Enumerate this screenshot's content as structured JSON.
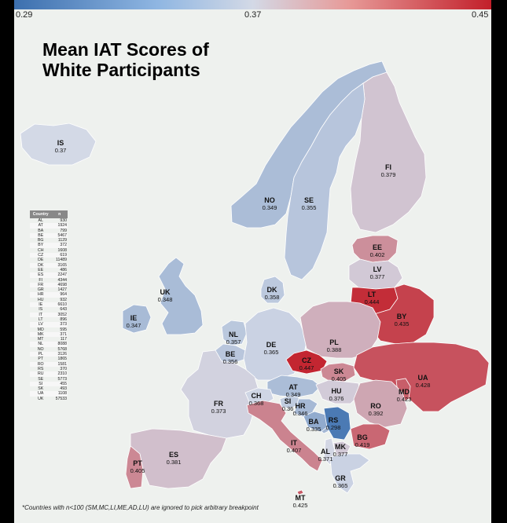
{
  "title_line1": "Mean IAT Scores of",
  "title_line2": "White Participants",
  "colorbar": {
    "min_label": "0.29",
    "mid_label": "0.37",
    "max_label": "0.45",
    "min": 0.29,
    "max": 0.45
  },
  "colors": {
    "low": "#3c6fae",
    "mid": "#d3d9e6",
    "high": "#c21f2a",
    "background": "#eef1ee"
  },
  "table": {
    "headers": [
      "Country",
      "n"
    ],
    "rows": [
      [
        "AL",
        "930"
      ],
      [
        "AT",
        "1924"
      ],
      [
        "BA",
        "799"
      ],
      [
        "BE",
        "5467"
      ],
      [
        "BG",
        "1129"
      ],
      [
        "BY",
        "372"
      ],
      [
        "CH",
        "1608"
      ],
      [
        "CZ",
        "619"
      ],
      [
        "DE",
        "11489"
      ],
      [
        "DK",
        "3165"
      ],
      [
        "EE",
        "486"
      ],
      [
        "ES",
        "2247"
      ],
      [
        "FI",
        "4344"
      ],
      [
        "FR",
        "4698"
      ],
      [
        "GR",
        "1427"
      ],
      [
        "HR",
        "964"
      ],
      [
        "HU",
        "932"
      ],
      [
        "IE",
        "6610"
      ],
      [
        "IS",
        "643"
      ],
      [
        "IT",
        "3052"
      ],
      [
        "LT",
        "896"
      ],
      [
        "LV",
        "373"
      ],
      [
        "MD",
        "595"
      ],
      [
        "MK",
        "371"
      ],
      [
        "MT",
        "117"
      ],
      [
        "NL",
        "8088"
      ],
      [
        "NO",
        "5768"
      ],
      [
        "PL",
        "3126"
      ],
      [
        "PT",
        "1865"
      ],
      [
        "RO",
        "1581"
      ],
      [
        "RS",
        "370"
      ],
      [
        "RU",
        "2310"
      ],
      [
        "SE",
        "5773"
      ],
      [
        "SI",
        "455"
      ],
      [
        "SK",
        "493"
      ],
      [
        "UA",
        "1108"
      ],
      [
        "UK",
        "57533"
      ]
    ]
  },
  "countries": [
    {
      "code": "IS",
      "value": "0.37"
    },
    {
      "code": "FI",
      "value": "0.379"
    },
    {
      "code": "NO",
      "value": "0.349"
    },
    {
      "code": "SE",
      "value": "0.355"
    },
    {
      "code": "EE",
      "value": "0.402"
    },
    {
      "code": "LV",
      "value": "0.377"
    },
    {
      "code": "LT",
      "value": "0.444"
    },
    {
      "code": "BY",
      "value": "0.435"
    },
    {
      "code": "DK",
      "value": "0.358"
    },
    {
      "code": "UK",
      "value": "0.348"
    },
    {
      "code": "IE",
      "value": "0.347"
    },
    {
      "code": "NL",
      "value": "0.357"
    },
    {
      "code": "BE",
      "value": "0.356"
    },
    {
      "code": "DE",
      "value": "0.365"
    },
    {
      "code": "PL",
      "value": "0.388"
    },
    {
      "code": "CZ",
      "value": "0.447"
    },
    {
      "code": "SK",
      "value": "0.405"
    },
    {
      "code": "UA",
      "value": "0.428"
    },
    {
      "code": "MD",
      "value": "0.423"
    },
    {
      "code": "AT",
      "value": "0.349"
    },
    {
      "code": "HU",
      "value": "0.376"
    },
    {
      "code": "RO",
      "value": "0.392"
    },
    {
      "code": "FR",
      "value": "0.373"
    },
    {
      "code": "CH",
      "value": "0.368"
    },
    {
      "code": "SI",
      "value": "0.36"
    },
    {
      "code": "HR",
      "value": "0.346"
    },
    {
      "code": "BA",
      "value": "0.335"
    },
    {
      "code": "RS",
      "value": "0.298"
    },
    {
      "code": "BG",
      "value": "0.419"
    },
    {
      "code": "IT",
      "value": "0.407"
    },
    {
      "code": "MK",
      "value": "0.377"
    },
    {
      "code": "AL",
      "value": "0.371"
    },
    {
      "code": "GR",
      "value": "0.365"
    },
    {
      "code": "ES",
      "value": "0.381"
    },
    {
      "code": "PT",
      "value": "0.405"
    },
    {
      "code": "MT",
      "value": "0.425"
    }
  ],
  "footnote": "*Countries with n<100 (SM,MC,LI,ME,AD,LU) are ignored to pick arbitrary breakpoint"
}
